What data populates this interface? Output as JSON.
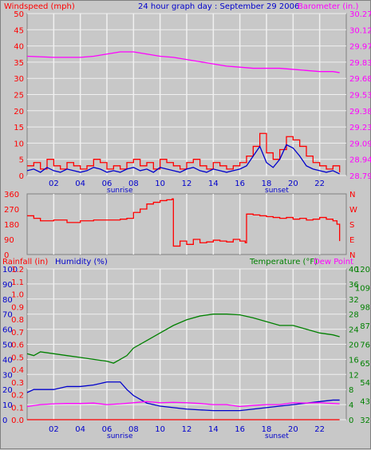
{
  "header": {
    "left_label": "Windspeed (mph)",
    "center_title": "24 hour graph day : September 29 2006",
    "right_label": "Barometer (in.)"
  },
  "time_axis": {
    "ticks": [
      "02",
      "04",
      "06",
      "08",
      "10",
      "12",
      "14",
      "16",
      "18",
      "20",
      "22"
    ],
    "events": [
      "sunrise",
      "sunset"
    ]
  },
  "colors": {
    "background": "#c8c8c8",
    "grid": "#f0f0f0",
    "wind_gust": "#ff0000",
    "wind_avg": "#0000cc",
    "barometer": "#ff00ff",
    "direction": "#ff0000",
    "temperature": "#008000",
    "humidity": "#0000cc",
    "rainfall": "#ff0000",
    "dewpoint": "#ff00ff"
  },
  "chart_data": [
    {
      "type": "line",
      "id": "wind-baro",
      "x": "hour of day",
      "left_axis": {
        "label": "Windspeed (mph)",
        "ticks": [
          0,
          2.5,
          5,
          7.5,
          10,
          12.5,
          15,
          17.5,
          20,
          22.5,
          25,
          27.5,
          30,
          32.5,
          35,
          37.5,
          40,
          42.5,
          45,
          47.5,
          50
        ],
        "tick_labels": [
          "0",
          "",
          "5",
          "",
          "10",
          "",
          "15",
          "",
          "20",
          "",
          "25",
          "",
          "30",
          "",
          "35",
          "",
          "40",
          "",
          "45",
          "",
          "50"
        ],
        "ylim": [
          0,
          50
        ]
      },
      "right_axis": {
        "label": "Barometer (in.)",
        "tick_labels": [
          "28.79",
          "28.94",
          "29.09",
          "29.23",
          "29.38",
          "29.53",
          "29.68",
          "29.83",
          "29.97",
          "30.12",
          "30.27"
        ],
        "ylim": [
          28.79,
          30.27
        ]
      },
      "series": [
        {
          "color_key": "wind_gust",
          "axis": "left",
          "x": [
            0,
            0.5,
            1,
            1.5,
            2,
            2.5,
            3,
            3.5,
            4,
            4.5,
            5,
            5.5,
            6,
            6.5,
            7,
            7.5,
            8,
            8.5,
            9,
            9.5,
            10,
            10.5,
            11,
            11.5,
            12,
            12.5,
            13,
            13.5,
            14,
            14.5,
            15,
            15.5,
            16,
            16.5,
            17,
            17.5,
            18,
            18.5,
            19,
            19.5,
            20,
            20.5,
            21,
            21.5,
            22,
            22.5,
            23,
            23.5
          ],
          "values": [
            3,
            4,
            2,
            5,
            3,
            2,
            4,
            3,
            2,
            3,
            5,
            4,
            2,
            3,
            2,
            4,
            5,
            3,
            4,
            2,
            5,
            4,
            3,
            2,
            4,
            5,
            3,
            2,
            4,
            3,
            2,
            3,
            4,
            6,
            9,
            13,
            7,
            5,
            8,
            12,
            11,
            9,
            6,
            4,
            3,
            2,
            3,
            1
          ]
        },
        {
          "color_key": "wind_avg",
          "axis": "left",
          "x": [
            0,
            0.5,
            1,
            1.5,
            2,
            2.5,
            3,
            3.5,
            4,
            4.5,
            5,
            5.5,
            6,
            6.5,
            7,
            7.5,
            8,
            8.5,
            9,
            9.5,
            10,
            10.5,
            11,
            11.5,
            12,
            12.5,
            13,
            13.5,
            14,
            14.5,
            15,
            15.5,
            16,
            16.5,
            17,
            17.5,
            18,
            18.5,
            19,
            19.5,
            20,
            20.5,
            21,
            21.5,
            22,
            22.5,
            23,
            23.5
          ],
          "values": [
            1.5,
            2,
            1,
            2.5,
            1.5,
            1,
            2,
            1.5,
            1,
            1.5,
            2.5,
            2,
            1,
            1.5,
            1,
            2,
            2.5,
            1.5,
            2,
            1,
            2.5,
            2,
            1.5,
            1,
            2,
            2.5,
            1.5,
            1,
            2,
            1.5,
            1,
            1.5,
            2,
            3,
            6,
            9,
            4,
            2.5,
            5,
            9.5,
            8.5,
            6,
            3,
            2,
            1.5,
            1,
            1.5,
            0.5
          ]
        },
        {
          "color_key": "barometer",
          "axis": "right",
          "x": [
            0,
            2,
            4,
            5,
            6,
            7,
            8,
            9,
            10,
            11,
            12,
            13,
            14,
            15,
            16,
            17,
            18,
            19,
            20,
            21,
            22,
            23,
            23.5
          ],
          "values": [
            29.88,
            29.87,
            29.87,
            29.88,
            29.9,
            29.92,
            29.92,
            29.9,
            29.88,
            29.87,
            29.85,
            29.83,
            29.81,
            29.79,
            29.78,
            29.77,
            29.77,
            29.77,
            29.76,
            29.75,
            29.74,
            29.74,
            29.73
          ]
        }
      ]
    },
    {
      "type": "line",
      "id": "direction",
      "x": "hour of day",
      "left_axis": {
        "tick_labels": [
          "0",
          "90",
          "180",
          "270",
          "360"
        ],
        "ylim": [
          0,
          360
        ]
      },
      "right_axis": {
        "tick_labels": [
          "N",
          "E",
          "S",
          "W",
          "N"
        ]
      },
      "series": [
        {
          "color_key": "direction",
          "x": [
            0,
            0.5,
            1,
            2,
            3,
            4,
            5,
            6,
            7,
            7.5,
            8,
            8.5,
            9,
            9.5,
            10,
            10.5,
            10.9,
            11,
            11.5,
            12,
            12.5,
            13,
            13.5,
            14,
            14.5,
            15,
            15.5,
            16,
            16.4,
            16.5,
            17,
            17.5,
            18,
            18.5,
            19,
            19.5,
            20,
            20.5,
            21,
            21.5,
            22,
            22.5,
            23,
            23.3,
            23.5
          ],
          "values": [
            230,
            215,
            200,
            205,
            190,
            200,
            205,
            205,
            210,
            215,
            250,
            270,
            300,
            310,
            320,
            325,
            330,
            50,
            80,
            60,
            90,
            70,
            75,
            85,
            80,
            75,
            90,
            80,
            70,
            240,
            235,
            230,
            225,
            220,
            215,
            220,
            210,
            215,
            205,
            210,
            220,
            210,
            200,
            180,
            80
          ]
        }
      ]
    },
    {
      "type": "line",
      "id": "temp-hum-rain",
      "x": "hour of day",
      "axes_labels": {
        "rainfall": "Rainfall (in)",
        "humidity": "Humidity (%)",
        "temperature": "Temperature (°F)",
        "dewpoint": "Dew Point"
      },
      "humidity_ticks": [
        "0",
        "10",
        "20",
        "30",
        "40",
        "50",
        "60",
        "70",
        "80",
        "90",
        "100"
      ],
      "rainfall_ticks": [
        "0.0",
        "0.1",
        "0.2",
        "0.3",
        "0.4",
        "0.5",
        "0.6",
        "0.7",
        "0.8",
        "0.9",
        "1.0",
        "1.1",
        "1.2"
      ],
      "temperature_c_ticks": [
        "0",
        "4",
        "8",
        "12",
        "16",
        "20",
        "24",
        "28",
        "32",
        "36",
        "40"
      ],
      "temperature_f_ticks": [
        "32",
        "43",
        "54",
        "65",
        "76",
        "87",
        "98",
        "109",
        "120"
      ],
      "series": [
        {
          "name": "Temperature",
          "color_key": "temperature",
          "x": [
            0,
            0.5,
            1,
            2,
            3,
            4,
            5,
            6,
            6.5,
            7,
            7.5,
            8,
            9,
            10,
            11,
            12,
            13,
            14,
            15,
            16,
            17,
            18,
            19,
            20,
            21,
            22,
            23,
            23.5
          ],
          "values": [
            17.5,
            17,
            18,
            17.5,
            17,
            16.5,
            16,
            15.5,
            15,
            16,
            17,
            19,
            21,
            23,
            25,
            26.5,
            27.5,
            28,
            28,
            27.8,
            27,
            26,
            25,
            25,
            24,
            23,
            22.5,
            22
          ]
        },
        {
          "name": "Humidity",
          "color_key": "humidity",
          "x": [
            0,
            0.5,
            1,
            2,
            3,
            4,
            5,
            6,
            7,
            7.5,
            8,
            9,
            10,
            11,
            12,
            13,
            14,
            15,
            16,
            17,
            18,
            19,
            20,
            21,
            22,
            23,
            23.5
          ],
          "values": [
            18,
            20,
            20,
            20,
            22,
            22,
            23,
            25,
            25,
            20,
            16,
            11,
            9,
            8,
            7,
            6.5,
            6,
            6,
            6,
            7,
            8,
            9,
            10,
            11,
            12,
            13,
            13
          ]
        },
        {
          "name": "Dew Point",
          "color_key": "dewpoint",
          "x": [
            0,
            1,
            2,
            3,
            4,
            5,
            6,
            7,
            8,
            9,
            10,
            11,
            12,
            13,
            14,
            15,
            16,
            17,
            18,
            19,
            20,
            21,
            22,
            23,
            23.5
          ],
          "values": [
            3.5,
            4,
            4.2,
            4.3,
            4.3,
            4.4,
            4,
            4.2,
            4.5,
            4.8,
            4.5,
            4.6,
            4.5,
            4.3,
            4,
            4,
            3.5,
            3.8,
            4,
            4,
            4.5,
            4.4,
            4.5,
            4.3,
            4.2
          ]
        },
        {
          "name": "Rainfall",
          "color_key": "rainfall",
          "x": [
            0,
            23.5
          ],
          "values": [
            0,
            0
          ]
        }
      ]
    }
  ]
}
